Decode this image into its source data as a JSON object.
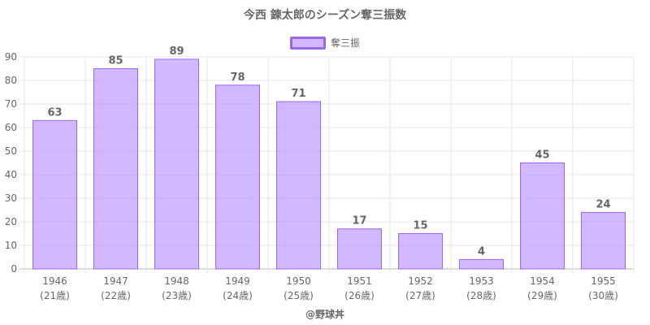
{
  "page": {
    "credit": "@野球丼"
  },
  "chart_data": {
    "type": "bar",
    "title": "今西 錬太郎のシーズン奪三振数",
    "legend": {
      "position": "top",
      "label": "奪三振"
    },
    "categories": [
      "1946",
      "1947",
      "1948",
      "1949",
      "1950",
      "1951",
      "1952",
      "1953",
      "1954",
      "1955"
    ],
    "ages": [
      "(21歳)",
      "(22歳)",
      "(23歳)",
      "(24歳)",
      "(25歳)",
      "(26歳)",
      "(27歳)",
      "(28歳)",
      "(29歳)",
      "(30歳)"
    ],
    "series": [
      {
        "name": "奪三振",
        "values": [
          63,
          85,
          89,
          78,
          71,
          17,
          15,
          4,
          45,
          24
        ]
      }
    ],
    "ylim": [
      0,
      90
    ],
    "yticks": [
      0,
      10,
      20,
      30,
      40,
      50,
      60,
      70,
      80,
      90
    ],
    "data_labels": true,
    "grid": true,
    "colors": {
      "bar_fill": "rgba(179,136,255,0.6)",
      "bar_border": "#9a66ee",
      "grid": "#e6e6e6",
      "text": "#666666"
    }
  }
}
